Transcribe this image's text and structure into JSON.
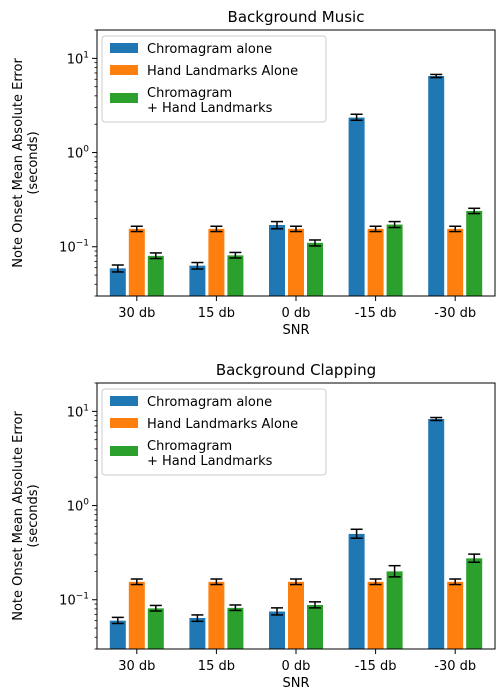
{
  "chart_data": [
    {
      "type": "bar",
      "title": "Background Music",
      "xlabel": "SNR",
      "ylabel": [
        "Note Onset Mean Absolute Error",
        "(seconds)"
      ],
      "yscale": "log",
      "ylim": [
        0.03,
        20
      ],
      "yticks": [
        {
          "value": 0.1,
          "base": "10",
          "exp": "−1"
        },
        {
          "value": 1,
          "base": "10",
          "exp": "0"
        },
        {
          "value": 10,
          "base": "10",
          "exp": "1"
        }
      ],
      "categories": [
        "30 db",
        "15 db",
        "0 db",
        "-15 db",
        "-30 db"
      ],
      "legend_position": "upper-left",
      "grid": false,
      "series": [
        {
          "name": "Chromagram alone",
          "color": "#1f77b4",
          "values": [
            0.059,
            0.063,
            0.17,
            2.35,
            6.5
          ],
          "errors": [
            [
              0.054,
              0.064
            ],
            [
              0.058,
              0.068
            ],
            [
              0.155,
              0.185
            ],
            [
              2.2,
              2.55
            ],
            [
              6.25,
              6.75
            ]
          ]
        },
        {
          "name": "Hand Landmarks Alone",
          "color": "#ff7f0e",
          "values": [
            0.155,
            0.155,
            0.155,
            0.155,
            0.155
          ],
          "errors": [
            [
              0.145,
              0.165
            ],
            [
              0.145,
              0.165
            ],
            [
              0.145,
              0.165
            ],
            [
              0.145,
              0.165
            ],
            [
              0.145,
              0.165
            ]
          ]
        },
        {
          "name": [
            "Chromagram",
            " + Hand Landmarks"
          ],
          "color": "#2ca02c",
          "values": [
            0.08,
            0.081,
            0.11,
            0.172,
            0.24
          ],
          "errors": [
            [
              0.075,
              0.086
            ],
            [
              0.076,
              0.087
            ],
            [
              0.102,
              0.118
            ],
            [
              0.16,
              0.185
            ],
            [
              0.225,
              0.256
            ]
          ]
        }
      ]
    },
    {
      "type": "bar",
      "title": "Background Clapping",
      "xlabel": "SNR",
      "ylabel": [
        "Note Onset Mean Absolute Error",
        "(seconds)"
      ],
      "yscale": "log",
      "ylim": [
        0.03,
        20
      ],
      "yticks": [
        {
          "value": 0.1,
          "base": "10",
          "exp": "−1"
        },
        {
          "value": 1,
          "base": "10",
          "exp": "0"
        },
        {
          "value": 10,
          "base": "10",
          "exp": "1"
        }
      ],
      "categories": [
        "30 db",
        "15 db",
        "0 db",
        "-15 db",
        "-30 db"
      ],
      "legend_position": "upper-left",
      "grid": false,
      "series": [
        {
          "name": "Chromagram alone",
          "color": "#1f77b4",
          "values": [
            0.06,
            0.064,
            0.075,
            0.5,
            8.3
          ],
          "errors": [
            [
              0.056,
              0.065
            ],
            [
              0.059,
              0.069
            ],
            [
              0.069,
              0.082
            ],
            [
              0.45,
              0.56
            ],
            [
              8.0,
              8.6
            ]
          ]
        },
        {
          "name": "Hand Landmarks Alone",
          "color": "#ff7f0e",
          "values": [
            0.155,
            0.155,
            0.155,
            0.155,
            0.155
          ],
          "errors": [
            [
              0.145,
              0.166
            ],
            [
              0.145,
              0.166
            ],
            [
              0.145,
              0.166
            ],
            [
              0.145,
              0.166
            ],
            [
              0.145,
              0.166
            ]
          ]
        },
        {
          "name": [
            "Chromagram",
            " + Hand Landmarks"
          ],
          "color": "#2ca02c",
          "values": [
            0.081,
            0.082,
            0.088,
            0.2,
            0.275
          ],
          "errors": [
            [
              0.076,
              0.087
            ],
            [
              0.077,
              0.088
            ],
            [
              0.082,
              0.095
            ],
            [
              0.175,
              0.23
            ],
            [
              0.25,
              0.305
            ]
          ]
        }
      ]
    }
  ]
}
